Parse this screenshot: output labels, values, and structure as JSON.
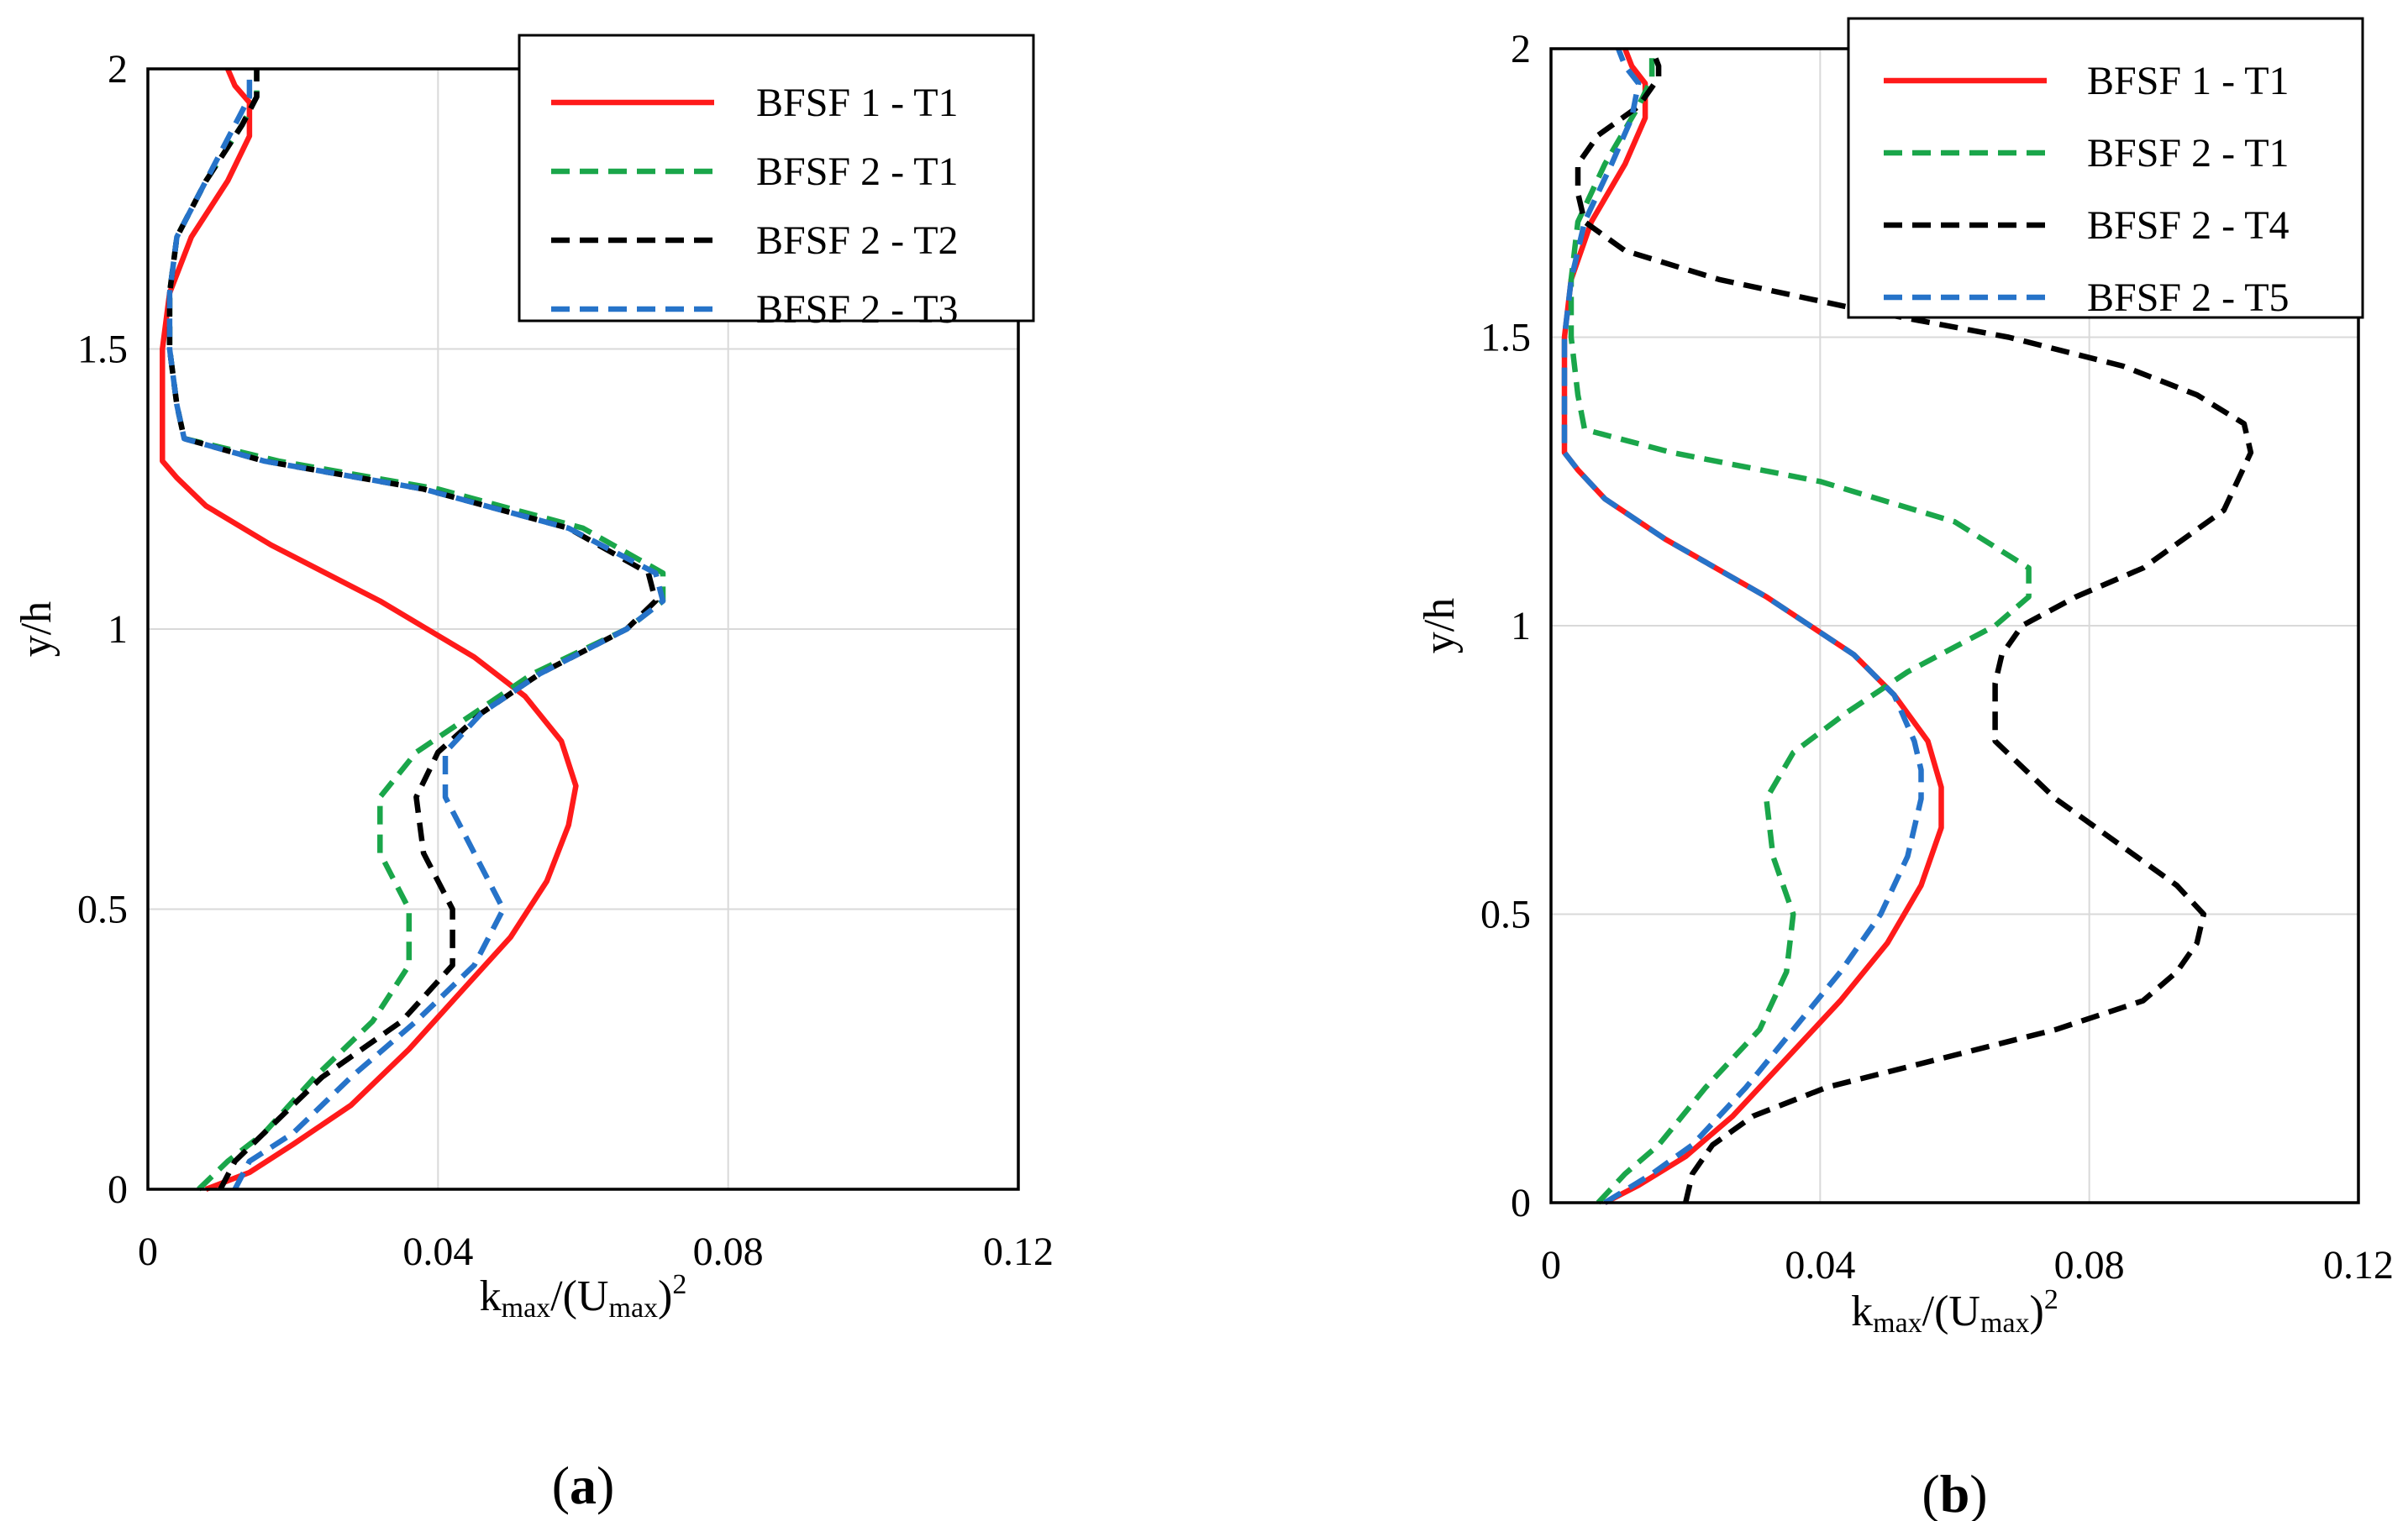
{
  "chart_data": [
    {
      "type": "line",
      "panel": "a",
      "panel_label": "a",
      "xlabel": {
        "base": "k",
        "sub": "max",
        "mid": "/(U",
        "sub2": "max",
        "end": ")",
        "sup": "2"
      },
      "ylabel": "y/h",
      "xlim": [
        0,
        0.12
      ],
      "ylim": [
        0,
        2
      ],
      "xticks": [
        0,
        0.04,
        0.08,
        0.12
      ],
      "xtick_labels": [
        "0",
        "0.04",
        "0.08",
        "0.12"
      ],
      "yticks": [
        0,
        0.5,
        1,
        1.5,
        2
      ],
      "ytick_labels": [
        "0",
        "0.5",
        "1",
        "1.5",
        "2"
      ],
      "legend_position": "top-right",
      "series": [
        {
          "name": "BFSF 1 - T1",
          "color": "#ff1a1a",
          "dash": "solid",
          "y": [
            0,
            0.03,
            0.08,
            0.15,
            0.25,
            0.35,
            0.45,
            0.55,
            0.65,
            0.72,
            0.8,
            0.88,
            0.95,
            1.05,
            1.15,
            1.22,
            1.27,
            1.3,
            1.4,
            1.5,
            1.6,
            1.7,
            1.8,
            1.88,
            1.94,
            1.97,
            2.0
          ],
          "x": [
            0.008,
            0.014,
            0.02,
            0.028,
            0.036,
            0.043,
            0.05,
            0.055,
            0.058,
            0.059,
            0.057,
            0.052,
            0.045,
            0.032,
            0.017,
            0.008,
            0.004,
            0.002,
            0.002,
            0.002,
            0.003,
            0.006,
            0.011,
            0.014,
            0.014,
            0.012,
            0.011
          ]
        },
        {
          "name": "BFSF 2 - T1",
          "color": "#1aa64a",
          "dash": "dashed",
          "y": [
            0,
            0.05,
            0.1,
            0.2,
            0.3,
            0.4,
            0.5,
            0.6,
            0.7,
            0.78,
            0.85,
            0.92,
            1.0,
            1.05,
            1.1,
            1.18,
            1.25,
            1.3,
            1.34,
            1.4,
            1.5,
            1.6,
            1.7,
            1.8,
            1.9,
            1.95,
            2.0
          ],
          "x": [
            0.007,
            0.011,
            0.016,
            0.023,
            0.031,
            0.036,
            0.036,
            0.032,
            0.032,
            0.037,
            0.045,
            0.053,
            0.066,
            0.071,
            0.071,
            0.06,
            0.04,
            0.018,
            0.005,
            0.004,
            0.003,
            0.003,
            0.004,
            0.008,
            0.013,
            0.015,
            0.015
          ]
        },
        {
          "name": "BFSF 2 - T2",
          "color": "#000000",
          "dash": "dashed",
          "y": [
            0,
            0.05,
            0.1,
            0.2,
            0.3,
            0.4,
            0.5,
            0.6,
            0.7,
            0.78,
            0.85,
            0.92,
            1.0,
            1.05,
            1.1,
            1.18,
            1.25,
            1.3,
            1.34,
            1.4,
            1.5,
            1.6,
            1.7,
            1.8,
            1.9,
            1.95,
            2.0
          ],
          "x": [
            0.01,
            0.012,
            0.016,
            0.024,
            0.035,
            0.042,
            0.042,
            0.038,
            0.037,
            0.04,
            0.046,
            0.054,
            0.066,
            0.07,
            0.069,
            0.058,
            0.038,
            0.016,
            0.005,
            0.004,
            0.003,
            0.003,
            0.004,
            0.008,
            0.013,
            0.015,
            0.015
          ]
        },
        {
          "name": "BFSF 2 - T3",
          "color": "#2673c9",
          "dash": "dashed",
          "y": [
            0,
            0.05,
            0.1,
            0.2,
            0.3,
            0.4,
            0.5,
            0.6,
            0.7,
            0.78,
            0.85,
            0.92,
            1.0,
            1.05,
            1.1,
            1.18,
            1.25,
            1.3,
            1.34,
            1.4,
            1.5,
            1.6,
            1.7,
            1.8,
            1.9,
            1.95,
            2.0
          ],
          "x": [
            0.012,
            0.014,
            0.02,
            0.028,
            0.037,
            0.045,
            0.049,
            0.045,
            0.041,
            0.041,
            0.046,
            0.054,
            0.066,
            0.071,
            0.07,
            0.058,
            0.038,
            0.016,
            0.005,
            0.004,
            0.003,
            0.003,
            0.004,
            0.008,
            0.012,
            0.014,
            0.014
          ]
        }
      ]
    },
    {
      "type": "line",
      "panel": "b",
      "panel_label": "b",
      "xlabel": {
        "base": "k",
        "sub": "max",
        "mid": "/(U",
        "sub2": "max",
        "end": ")",
        "sup": "2"
      },
      "ylabel": "y/h",
      "xlim": [
        0,
        0.12
      ],
      "ylim": [
        0,
        2
      ],
      "xticks": [
        0,
        0.04,
        0.08,
        0.12
      ],
      "xtick_labels": [
        "0",
        "0.04",
        "0.08",
        "0.12"
      ],
      "yticks": [
        0,
        0.5,
        1,
        1.5,
        2
      ],
      "ytick_labels": [
        "0",
        "0.5",
        "1",
        "1.5",
        "2"
      ],
      "legend_position": "top-right",
      "series": [
        {
          "name": "BFSF 1 - T1",
          "color": "#ff1a1a",
          "dash": "solid",
          "y": [
            0,
            0.03,
            0.08,
            0.15,
            0.25,
            0.35,
            0.45,
            0.55,
            0.65,
            0.72,
            0.8,
            0.88,
            0.95,
            1.05,
            1.15,
            1.22,
            1.27,
            1.3,
            1.4,
            1.5,
            1.6,
            1.7,
            1.8,
            1.88,
            1.94,
            1.97,
            2.0
          ],
          "x": [
            0.008,
            0.013,
            0.02,
            0.027,
            0.035,
            0.043,
            0.05,
            0.055,
            0.058,
            0.058,
            0.056,
            0.051,
            0.045,
            0.032,
            0.017,
            0.008,
            0.004,
            0.002,
            0.002,
            0.002,
            0.003,
            0.006,
            0.011,
            0.014,
            0.014,
            0.012,
            0.011
          ]
        },
        {
          "name": "BFSF 2 - T1",
          "color": "#1aa64a",
          "dash": "dashed",
          "y": [
            0,
            0.05,
            0.1,
            0.2,
            0.3,
            0.4,
            0.5,
            0.6,
            0.7,
            0.78,
            0.85,
            0.92,
            1.0,
            1.05,
            1.1,
            1.18,
            1.25,
            1.3,
            1.34,
            1.4,
            1.5,
            1.6,
            1.7,
            1.8,
            1.9,
            1.95,
            2.0
          ],
          "x": [
            0.007,
            0.011,
            0.016,
            0.023,
            0.031,
            0.035,
            0.036,
            0.033,
            0.032,
            0.036,
            0.044,
            0.053,
            0.066,
            0.071,
            0.071,
            0.06,
            0.04,
            0.018,
            0.005,
            0.004,
            0.003,
            0.003,
            0.004,
            0.008,
            0.013,
            0.015,
            0.015
          ]
        },
        {
          "name": "BFSF 2 - T4",
          "color": "#000000",
          "dash": "dashed",
          "y": [
            0,
            0.05,
            0.1,
            0.15,
            0.2,
            0.25,
            0.3,
            0.35,
            0.4,
            0.45,
            0.5,
            0.55,
            0.6,
            0.7,
            0.8,
            0.9,
            0.95,
            1.0,
            1.05,
            1.1,
            1.2,
            1.3,
            1.35,
            1.4,
            1.45,
            1.5,
            1.55,
            1.6,
            1.65,
            1.7,
            1.75,
            1.8,
            1.85,
            1.9,
            1.95,
            1.97,
            2.0
          ],
          "x": [
            0.02,
            0.021,
            0.024,
            0.03,
            0.041,
            0.058,
            0.075,
            0.088,
            0.093,
            0.096,
            0.097,
            0.093,
            0.087,
            0.075,
            0.066,
            0.066,
            0.067,
            0.07,
            0.078,
            0.088,
            0.1,
            0.104,
            0.103,
            0.096,
            0.085,
            0.068,
            0.045,
            0.025,
            0.011,
            0.005,
            0.004,
            0.004,
            0.007,
            0.013,
            0.016,
            0.016,
            0.015
          ]
        },
        {
          "name": "BFSF 2 - T5",
          "color": "#2673c9",
          "dash": "dashed",
          "y": [
            0,
            0.05,
            0.1,
            0.2,
            0.3,
            0.4,
            0.5,
            0.6,
            0.7,
            0.75,
            0.8,
            0.88,
            0.95,
            1.05,
            1.15,
            1.22,
            1.27,
            1.3,
            1.4,
            1.5,
            1.6,
            1.7,
            1.8,
            1.88,
            1.94,
            1.97,
            2.0
          ],
          "x": [
            0.008,
            0.015,
            0.021,
            0.029,
            0.036,
            0.043,
            0.049,
            0.053,
            0.055,
            0.055,
            0.054,
            0.051,
            0.045,
            0.032,
            0.017,
            0.008,
            0.004,
            0.002,
            0.002,
            0.002,
            0.003,
            0.005,
            0.009,
            0.012,
            0.013,
            0.011,
            0.01
          ]
        }
      ]
    }
  ]
}
